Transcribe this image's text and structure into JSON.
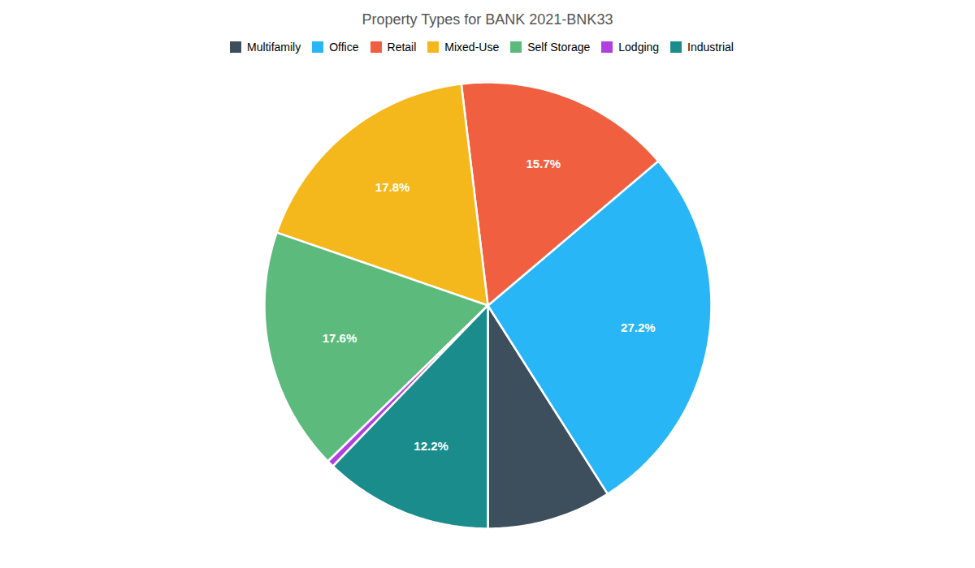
{
  "chart_data": {
    "type": "pie",
    "title": "Property Types for BANK 2021-BNK33",
    "categories": [
      "Multifamily",
      "Office",
      "Retail",
      "Mixed-Use",
      "Self Storage",
      "Lodging",
      "Industrial"
    ],
    "values": [
      9.0,
      27.2,
      15.7,
      17.8,
      17.6,
      0.5,
      12.2
    ],
    "value_labels": [
      null,
      "27.2%",
      "15.7%",
      "17.8%",
      "17.6%",
      null,
      "12.2%"
    ],
    "colors": [
      "#3d4f5c",
      "#29b6f6",
      "#f06040",
      "#f5b81c",
      "#5dba7d",
      "#b040e0",
      "#1a8c8c"
    ],
    "data_labels": true,
    "legend": "top"
  }
}
